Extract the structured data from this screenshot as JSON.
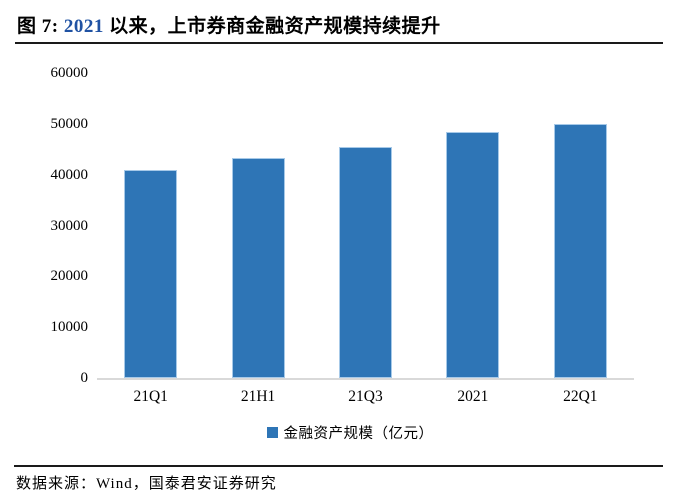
{
  "title": {
    "prefix": "图 7: ",
    "highlight": "2021",
    "rest": " 以来，上市券商金融资产规模持续提升"
  },
  "colors": {
    "bar_fill": "#2E75B6",
    "bar_border": "#A6C9E8",
    "title_highlight": "#2052A3",
    "baseline": "#D9D9D9",
    "divider": "#1A1A1A",
    "text": "#000000"
  },
  "chart_data": {
    "type": "bar",
    "title": "图 7: 2021 以来，上市券商金融资产规模持续提升",
    "categories": [
      "21Q1",
      "21H1",
      "21Q3",
      "2021",
      "22Q1"
    ],
    "values": [
      41000,
      43200,
      45500,
      48400,
      49900
    ],
    "series_name": "金融资产规模（亿元）",
    "xlabel": "",
    "ylabel": "",
    "ylim": [
      0,
      60000
    ],
    "yticks": [
      0,
      10000,
      20000,
      30000,
      40000,
      50000,
      60000
    ],
    "grid": false,
    "legend_position": "bottom"
  },
  "legend": {
    "label": "金融资产规模（亿元）"
  },
  "footer": {
    "source": "数据来源：Wind，国泰君安证券研究"
  }
}
